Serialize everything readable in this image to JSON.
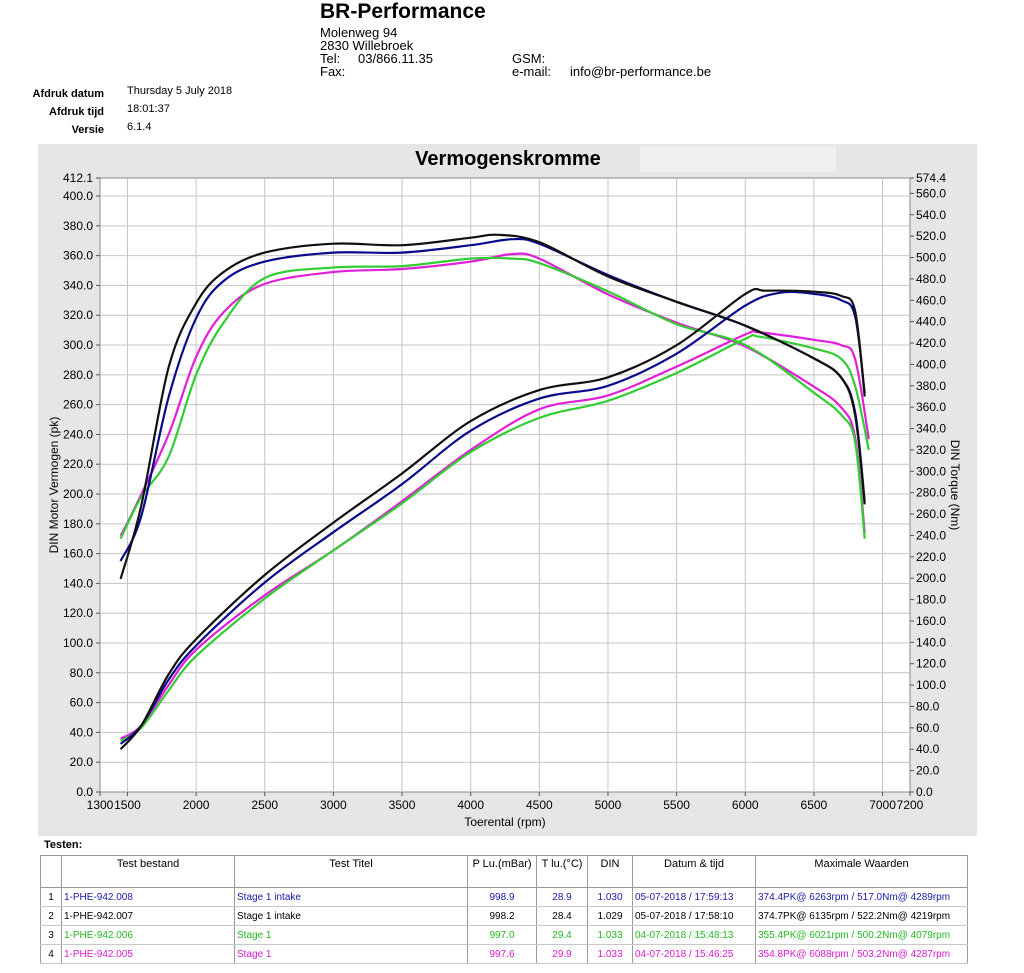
{
  "header": {
    "company": "BR-Performance",
    "street": "Molenweg 94",
    "city": "2830 Willebroek",
    "tel_label": "Tel:",
    "tel_value": "03/866.11.35",
    "fax_label": "Fax:",
    "gsm_label": "GSM:",
    "email_label": "e-mail:",
    "email_value": "info@br-performance.be"
  },
  "meta": {
    "date_label": "Afdruk datum",
    "date_value": "Thursday 5 July 2018",
    "time_label": "Afdruk tijd",
    "time_value": "18:01:37",
    "version_label": "Versie",
    "version_value": "6.1.4"
  },
  "chart_data": {
    "type": "line",
    "title": "Vermogenskromme",
    "xlabel": "Toerental (rpm)",
    "ylabel_left": "DIN Motor Vermogen (pk)",
    "ylabel_right": "DIN Torque (Nm)",
    "xlim": [
      1300,
      7200
    ],
    "ylim_left": [
      0,
      412.1
    ],
    "ylim_right": [
      0,
      574.4
    ],
    "x_ticks": [
      "1300",
      "1500",
      "2000",
      "2500",
      "3000",
      "3500",
      "4000",
      "4500",
      "5000",
      "5500",
      "6000",
      "6500",
      "7000",
      "7200"
    ],
    "y_left_ticks": [
      "0.0",
      "20.0",
      "40.0",
      "60.0",
      "80.0",
      "100.0",
      "120.0",
      "140.0",
      "160.0",
      "180.0",
      "200.0",
      "220.0",
      "240.0",
      "260.0",
      "280.0",
      "300.0",
      "320.0",
      "340.0",
      "360.0",
      "380.0",
      "400.0",
      "412.1"
    ],
    "y_right_ticks": [
      "0.0",
      "20.0",
      "40.0",
      "60.0",
      "80.0",
      "100.0",
      "120.0",
      "140.0",
      "160.0",
      "180.0",
      "200.0",
      "220.0",
      "240.0",
      "260.0",
      "280.0",
      "300.0",
      "320.0",
      "340.0",
      "360.0",
      "380.0",
      "400.0",
      "420.0",
      "440.0",
      "460.0",
      "480.0",
      "500.0",
      "520.0",
      "540.0",
      "560.0",
      "574.4"
    ],
    "grid": true,
    "series": [
      {
        "color": "#0a0a8c",
        "power": [
          [
            1450,
            155
          ],
          [
            1600,
            185
          ],
          [
            1800,
            265
          ],
          [
            2000,
            318
          ],
          [
            2200,
            343
          ],
          [
            2500,
            356
          ],
          [
            3000,
            362
          ],
          [
            3500,
            362
          ],
          [
            4000,
            367
          ],
          [
            4300,
            371
          ],
          [
            4500,
            368
          ],
          [
            5000,
            347
          ],
          [
            5500,
            329
          ],
          [
            6000,
            313
          ],
          [
            6500,
            291
          ],
          [
            6700,
            278
          ],
          [
            6800,
            255
          ],
          [
            6870,
            195
          ]
        ],
        "torque": [
          [
            1450,
            45
          ],
          [
            1600,
            62
          ],
          [
            1800,
            105
          ],
          [
            2000,
            137
          ],
          [
            2500,
            196
          ],
          [
            3000,
            243
          ],
          [
            3500,
            288
          ],
          [
            4000,
            338
          ],
          [
            4500,
            368
          ],
          [
            5000,
            380
          ],
          [
            5500,
            410
          ],
          [
            6000,
            455
          ],
          [
            6250,
            467
          ],
          [
            6500,
            466
          ],
          [
            6700,
            460
          ],
          [
            6800,
            445
          ],
          [
            6870,
            373
          ]
        ]
      },
      {
        "color": "#111111",
        "power": [
          [
            1450,
            143
          ],
          [
            1600,
            192
          ],
          [
            1800,
            285
          ],
          [
            2000,
            328
          ],
          [
            2200,
            349
          ],
          [
            2500,
            362
          ],
          [
            3000,
            368
          ],
          [
            3500,
            367
          ],
          [
            4000,
            372
          ],
          [
            4200,
            374
          ],
          [
            4500,
            369
          ],
          [
            5000,
            346
          ],
          [
            5500,
            329
          ],
          [
            6000,
            313
          ],
          [
            6500,
            291
          ],
          [
            6700,
            278
          ],
          [
            6800,
            253
          ],
          [
            6870,
            193
          ]
        ],
        "torque": [
          [
            1450,
            40
          ],
          [
            1600,
            62
          ],
          [
            1800,
            110
          ],
          [
            2000,
            143
          ],
          [
            2500,
            203
          ],
          [
            3000,
            252
          ],
          [
            3500,
            298
          ],
          [
            4000,
            347
          ],
          [
            4500,
            376
          ],
          [
            5000,
            388
          ],
          [
            5500,
            418
          ],
          [
            6000,
            466
          ],
          [
            6150,
            469
          ],
          [
            6500,
            468
          ],
          [
            6700,
            464
          ],
          [
            6800,
            450
          ],
          [
            6870,
            370
          ]
        ]
      },
      {
        "color": "#33cc33",
        "power": [
          [
            1450,
            170
          ],
          [
            1600,
            198
          ],
          [
            1800,
            225
          ],
          [
            2000,
            280
          ],
          [
            2200,
            315
          ],
          [
            2500,
            345
          ],
          [
            3000,
            352
          ],
          [
            3500,
            353
          ],
          [
            4000,
            358
          ],
          [
            4300,
            358
          ],
          [
            4500,
            355
          ],
          [
            5000,
            336
          ],
          [
            5500,
            314
          ],
          [
            6000,
            300
          ],
          [
            6500,
            268
          ],
          [
            6700,
            253
          ],
          [
            6800,
            235
          ],
          [
            6870,
            170
          ]
        ],
        "torque": [
          [
            1450,
            48
          ],
          [
            1600,
            60
          ],
          [
            1800,
            95
          ],
          [
            2000,
            127
          ],
          [
            2500,
            181
          ],
          [
            3000,
            226
          ],
          [
            3500,
            270
          ],
          [
            4000,
            318
          ],
          [
            4500,
            350
          ],
          [
            5000,
            366
          ],
          [
            5500,
            392
          ],
          [
            6000,
            424
          ],
          [
            6100,
            426
          ],
          [
            6500,
            415
          ],
          [
            6700,
            405
          ],
          [
            6800,
            380
          ],
          [
            6900,
            320
          ]
        ]
      },
      {
        "color": "#e020d8",
        "power": [
          [
            1450,
            172
          ],
          [
            1550,
            190
          ],
          [
            1800,
            240
          ],
          [
            2000,
            292
          ],
          [
            2200,
            322
          ],
          [
            2500,
            341
          ],
          [
            3000,
            349
          ],
          [
            3500,
            351
          ],
          [
            4000,
            356
          ],
          [
            4300,
            361
          ],
          [
            4500,
            358
          ],
          [
            5000,
            334
          ],
          [
            5500,
            315
          ],
          [
            6000,
            299
          ],
          [
            6500,
            272
          ],
          [
            6700,
            258
          ],
          [
            6800,
            238
          ],
          [
            6870,
            174
          ]
        ],
        "torque": [
          [
            1450,
            50
          ],
          [
            1600,
            62
          ],
          [
            1800,
            100
          ],
          [
            2000,
            133
          ],
          [
            2500,
            184
          ],
          [
            3000,
            226
          ],
          [
            3500,
            272
          ],
          [
            4000,
            320
          ],
          [
            4500,
            358
          ],
          [
            5000,
            371
          ],
          [
            5500,
            398
          ],
          [
            6000,
            428
          ],
          [
            6100,
            430
          ],
          [
            6500,
            423
          ],
          [
            6700,
            418
          ],
          [
            6800,
            405
          ],
          [
            6900,
            330
          ]
        ]
      }
    ]
  },
  "tests": {
    "label": "Testen:",
    "columns": [
      "",
      "Test bestand",
      "Test Titel",
      "P Lu.(mBar)",
      "T lu.(°C)",
      "DIN",
      "Datum & tijd",
      "Maximale Waarden"
    ],
    "rows": [
      {
        "n": "1",
        "file": "1-PHE-942.008",
        "title": "Stage 1 intake",
        "p": "998.9",
        "t": "28.9",
        "din": "1.030",
        "dt": "05-07-2018 / 17:59:13",
        "max": "374.4PK@ 6263rpm / 517.0Nm@ 4289rpm",
        "color": "#1a1aa8"
      },
      {
        "n": "2",
        "file": "1-PHE-942.007",
        "title": "Stage 1 intake",
        "p": "998.2",
        "t": "28.4",
        "din": "1.029",
        "dt": "05-07-2018 / 17:58:10",
        "max": "374.7PK@ 6135rpm / 522.2Nm@ 4219rpm",
        "color": "#000000"
      },
      {
        "n": "3",
        "file": "1-PHE-942.006",
        "title": "Stage 1",
        "p": "997.0",
        "t": "29.4",
        "din": "1.033",
        "dt": "04-07-2018 / 15:48:13",
        "max": "355.4PK@ 6021rpm / 500.2Nm@ 4079rpm",
        "color": "#22b822"
      },
      {
        "n": "4",
        "file": "1-PHE-942.005",
        "title": "Stage 1",
        "p": "997.6",
        "t": "29.9",
        "din": "1.033",
        "dt": "04-07-2018 / 15:46:25",
        "max": "354.8PK@ 6088rpm / 503.2Nm@ 4287rpm",
        "color": "#d81ad0"
      }
    ]
  }
}
